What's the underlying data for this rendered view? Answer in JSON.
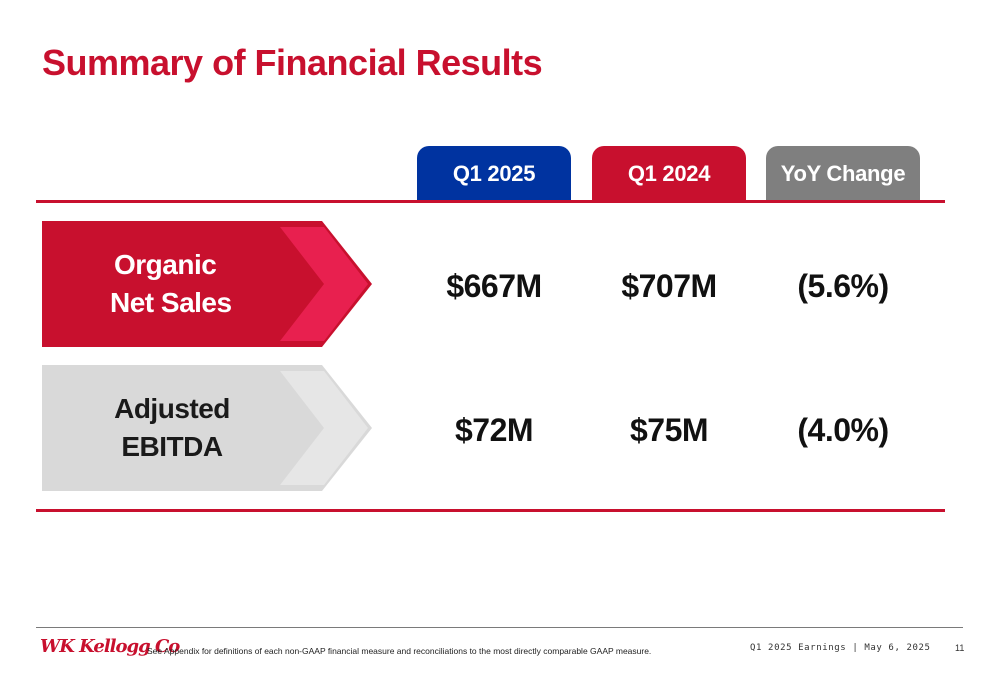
{
  "title": "Summary of Financial Results",
  "columns": [
    {
      "label": "Q1 2025",
      "color": "#0033a0"
    },
    {
      "label": "Q1 2024",
      "color": "#c8102e"
    },
    {
      "label": "YoY Change",
      "color": "#7f7f7f"
    }
  ],
  "rows": [
    {
      "label_line1": "Organic",
      "label_line2": "Net Sales",
      "values": [
        "$667M",
        "$707M",
        "(5.6%)"
      ],
      "bg_color": "#c8102e",
      "chevron_color": "#e8204f"
    },
    {
      "label_line1": "Adjusted",
      "label_line2": "EBITDA",
      "values": [
        "$72M",
        "$75M",
        "(4.0%)"
      ],
      "bg_color": "#d9d9d9",
      "chevron_color": "#e6e6e6"
    }
  ],
  "footer": {
    "logo_text": "WK Kellogg Co",
    "footnote": "See Appendix for definitions of each non-GAAP financial measure and reconciliations to the most directly comparable GAAP measure.",
    "event": "Q1 2025 Earnings  |  May 6, 2025",
    "page_number": "11"
  }
}
